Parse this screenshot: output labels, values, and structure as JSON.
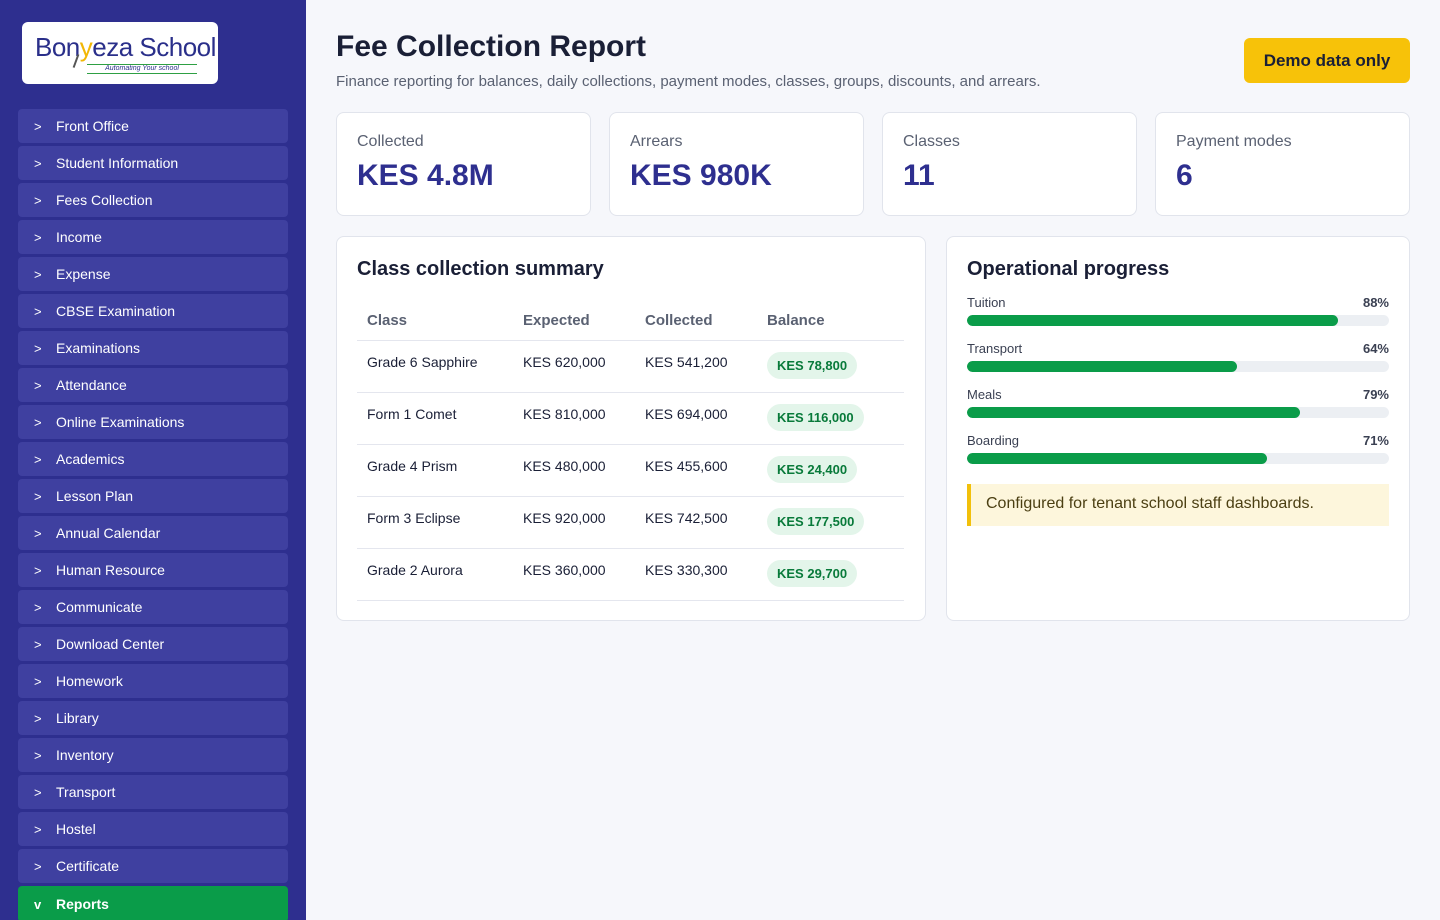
{
  "brand": {
    "name_part1": "Bon",
    "name_part2": "eza School",
    "tagline": "Automating Your school"
  },
  "sidebar": {
    "items": [
      {
        "label": "Front Office",
        "chev": ">"
      },
      {
        "label": "Student Information",
        "chev": ">"
      },
      {
        "label": "Fees Collection",
        "chev": ">"
      },
      {
        "label": "Income",
        "chev": ">"
      },
      {
        "label": "Expense",
        "chev": ">"
      },
      {
        "label": "CBSE Examination",
        "chev": ">"
      },
      {
        "label": "Examinations",
        "chev": ">"
      },
      {
        "label": "Attendance",
        "chev": ">"
      },
      {
        "label": "Online Examinations",
        "chev": ">"
      },
      {
        "label": "Academics",
        "chev": ">"
      },
      {
        "label": "Lesson Plan",
        "chev": ">"
      },
      {
        "label": "Annual Calendar",
        "chev": ">"
      },
      {
        "label": "Human Resource",
        "chev": ">"
      },
      {
        "label": "Communicate",
        "chev": ">"
      },
      {
        "label": "Download Center",
        "chev": ">"
      },
      {
        "label": "Homework",
        "chev": ">"
      },
      {
        "label": "Library",
        "chev": ">"
      },
      {
        "label": "Inventory",
        "chev": ">"
      },
      {
        "label": "Transport",
        "chev": ">"
      },
      {
        "label": "Hostel",
        "chev": ">"
      },
      {
        "label": "Certificate",
        "chev": ">"
      },
      {
        "label": "Reports",
        "chev": "v",
        "active": true
      }
    ]
  },
  "header": {
    "title": "Fee Collection Report",
    "subtitle": "Finance reporting for balances, daily collections, payment modes, classes, groups, discounts, and arrears.",
    "demo_button": "Demo data only"
  },
  "stats": [
    {
      "label": "Collected",
      "value": "KES 4.8M"
    },
    {
      "label": "Arrears",
      "value": "KES 980K"
    },
    {
      "label": "Classes",
      "value": "11"
    },
    {
      "label": "Payment modes",
      "value": "6"
    }
  ],
  "summary": {
    "title": "Class collection summary",
    "columns": [
      "Class",
      "Expected",
      "Collected",
      "Balance"
    ],
    "rows": [
      {
        "class": "Grade 6 Sapphire",
        "expected": "KES 620,000",
        "collected": "KES 541,200",
        "balance": "KES 78,800"
      },
      {
        "class": "Form 1 Comet",
        "expected": "KES 810,000",
        "collected": "KES 694,000",
        "balance": "KES 116,000"
      },
      {
        "class": "Grade 4 Prism",
        "expected": "KES 480,000",
        "collected": "KES 455,600",
        "balance": "KES 24,400"
      },
      {
        "class": "Form 3 Eclipse",
        "expected": "KES 920,000",
        "collected": "KES 742,500",
        "balance": "KES 177,500"
      },
      {
        "class": "Grade 2 Aurora",
        "expected": "KES 360,000",
        "collected": "KES 330,300",
        "balance": "KES 29,700"
      }
    ]
  },
  "progress": {
    "title": "Operational progress",
    "items": [
      {
        "label": "Tuition",
        "pct_text": "88%",
        "value": 88
      },
      {
        "label": "Transport",
        "pct_text": "64%",
        "value": 64
      },
      {
        "label": "Meals",
        "pct_text": "79%",
        "value": 79
      },
      {
        "label": "Boarding",
        "pct_text": "71%",
        "value": 71
      }
    ],
    "note": "Configured for tenant school staff dashboards."
  },
  "colors": {
    "sidebar": "#2e2f8f",
    "accent_green": "#0a9c49",
    "demo_yellow": "#f7c209"
  }
}
